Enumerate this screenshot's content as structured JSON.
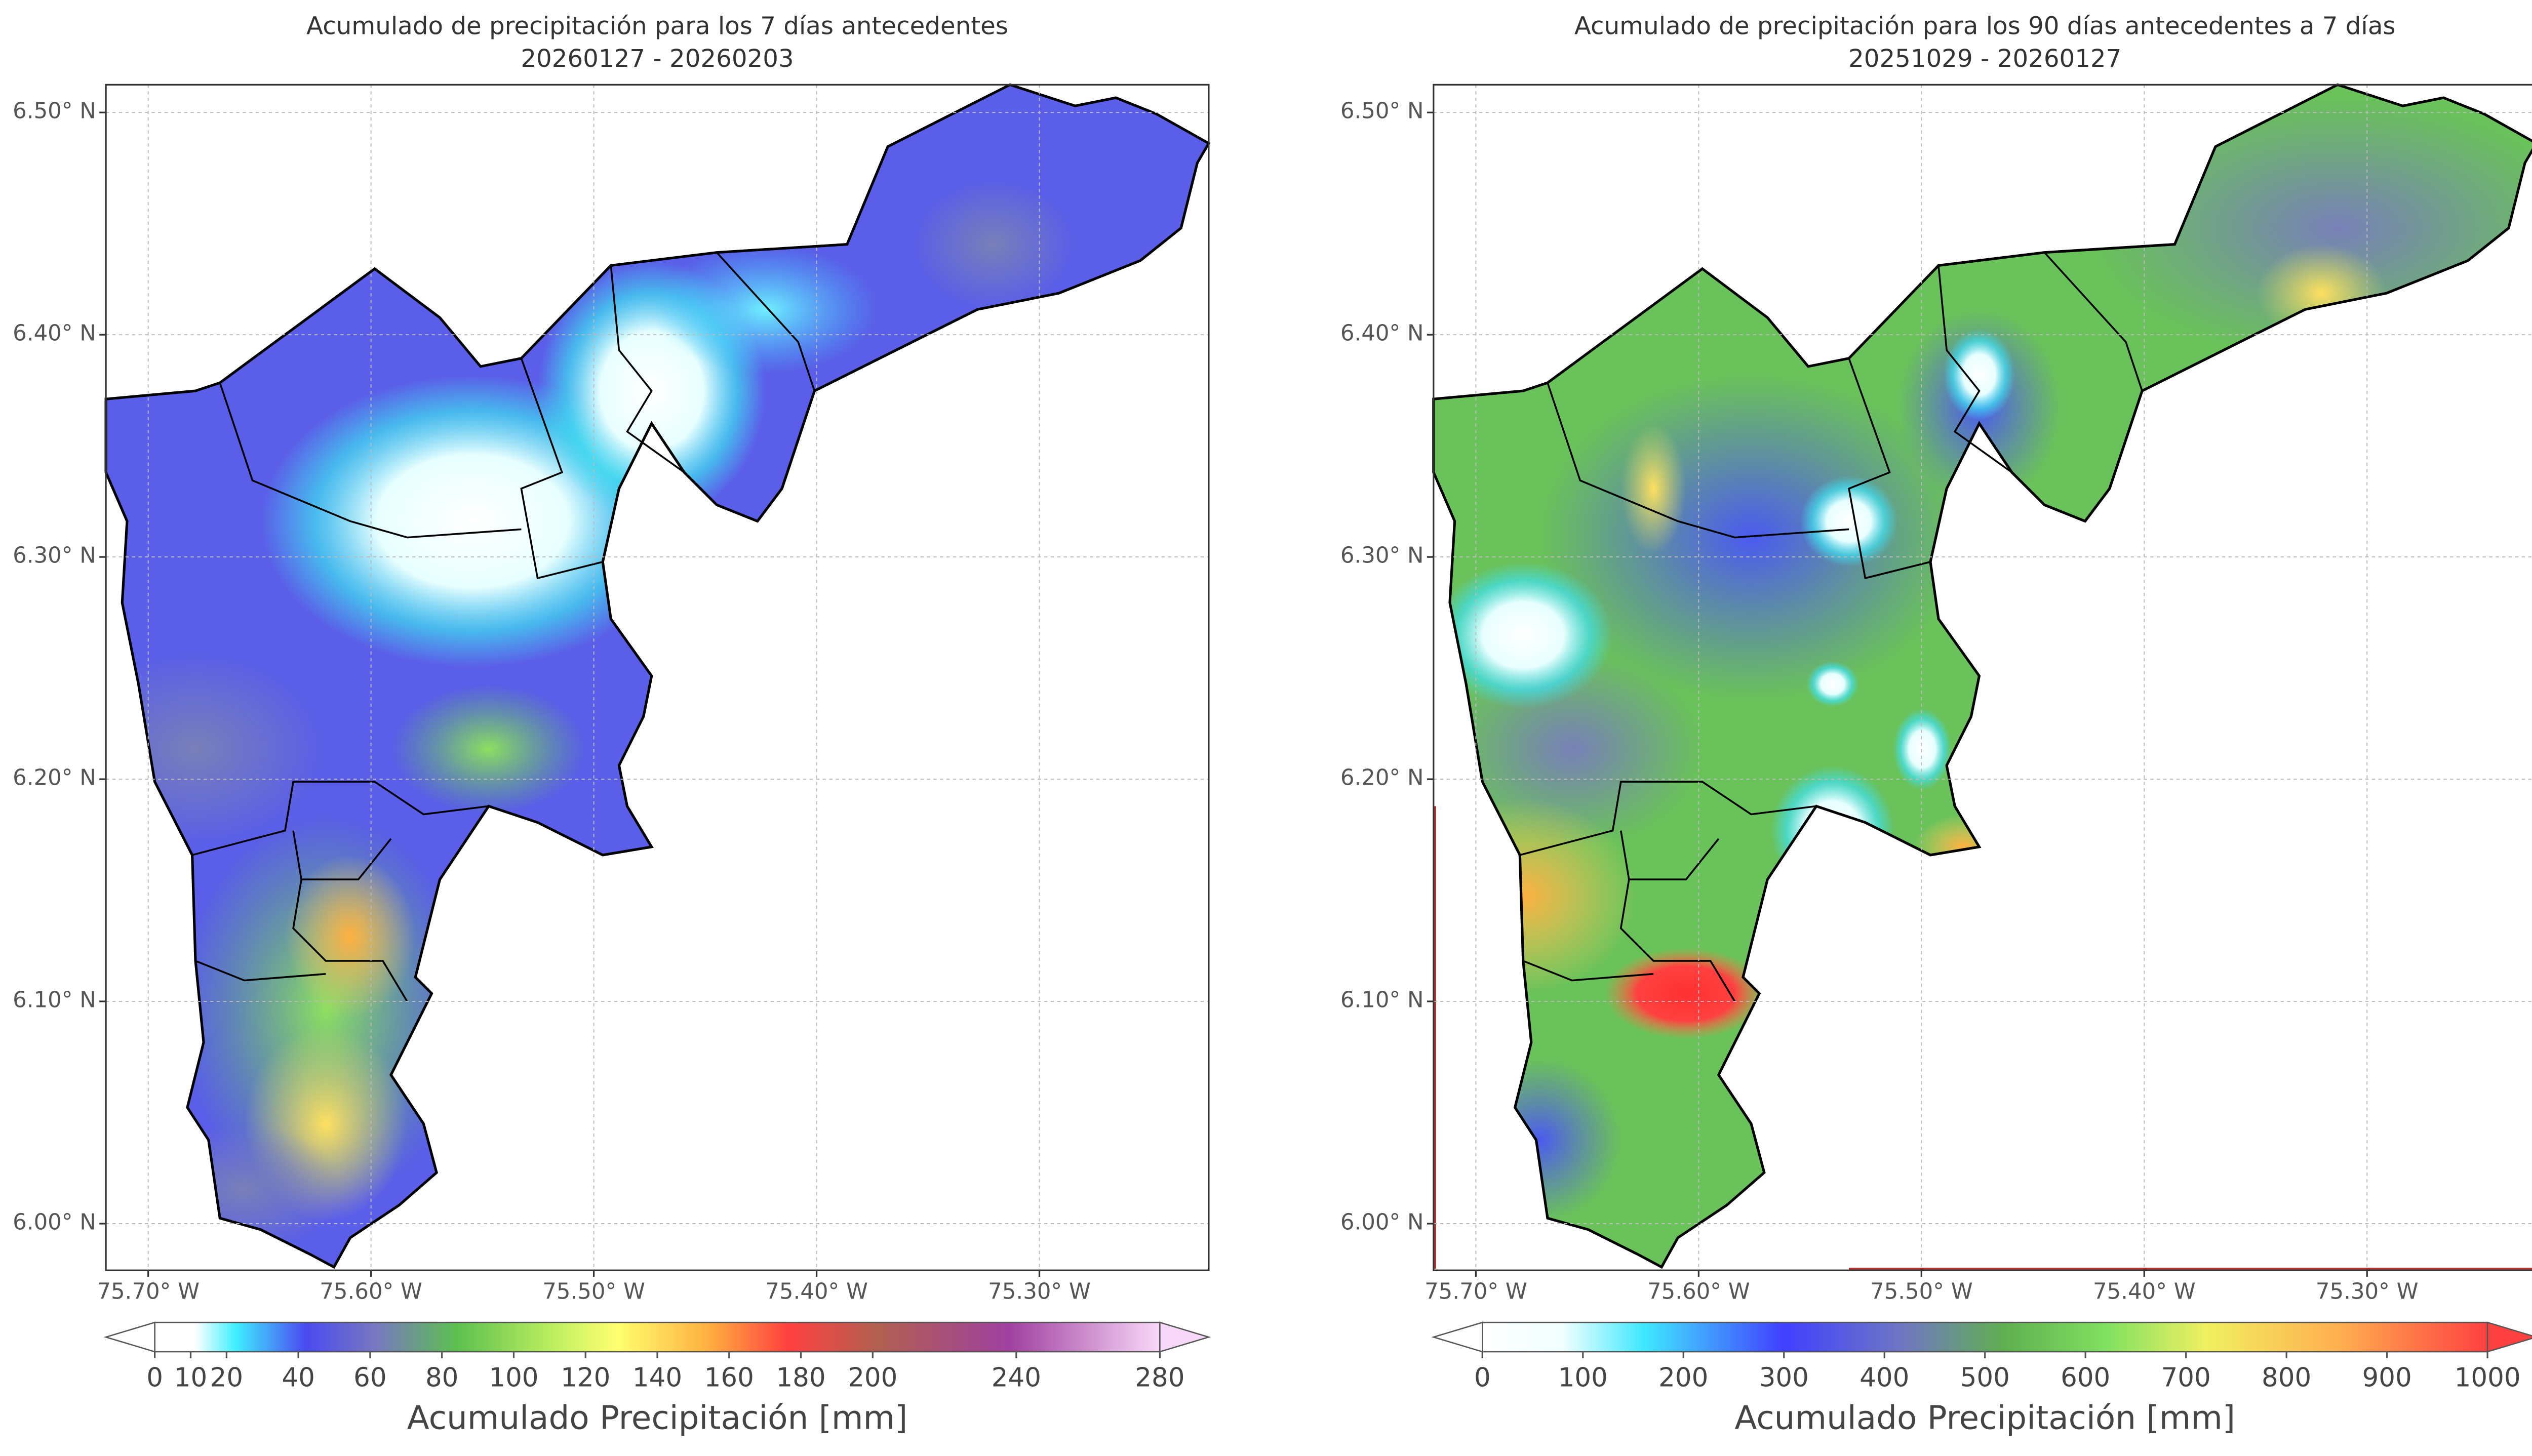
{
  "maps": [
    {
      "title": "Acumulado de precipitación para los 7 días antecedentes",
      "subtitle": "20260127 - 20260203",
      "xlim": [
        -75.719,
        -75.224
      ],
      "ylim": [
        5.979,
        6.5125
      ],
      "xticks": [
        {
          "value": -75.7,
          "label": "75.70° W"
        },
        {
          "value": -75.6,
          "label": "75.60° W"
        },
        {
          "value": -75.5,
          "label": "75.50° W"
        },
        {
          "value": -75.4,
          "label": "75.40° W"
        },
        {
          "value": -75.3,
          "label": "75.30° W"
        }
      ],
      "yticks": [
        {
          "value": 6.5,
          "label": "6.50° N"
        },
        {
          "value": 6.4,
          "label": "6.40° N"
        },
        {
          "value": 6.3,
          "label": "6.30° N"
        },
        {
          "value": 6.2,
          "label": "6.20° N"
        },
        {
          "value": 6.1,
          "label": "6.10° N"
        },
        {
          "value": 6.0,
          "label": "6.00° N"
        }
      ],
      "colorbar": {
        "label": "Acumulado Precipitación [mm]",
        "lim": [
          0,
          280
        ],
        "ticks": [
          0,
          10,
          20,
          40,
          60,
          80,
          100,
          120,
          140,
          160,
          180,
          200,
          240,
          280
        ]
      }
    },
    {
      "title": "Acumulado de precipitación para los 90 días antecedentes a 7 días",
      "subtitle": "20251029 - 20260127",
      "xlim": [
        -75.719,
        -75.224
      ],
      "ylim": [
        5.979,
        6.5125
      ],
      "xticks": [
        {
          "value": -75.7,
          "label": "75.70° W"
        },
        {
          "value": -75.6,
          "label": "75.60° W"
        },
        {
          "value": -75.5,
          "label": "75.50° W"
        },
        {
          "value": -75.4,
          "label": "75.40° W"
        },
        {
          "value": -75.3,
          "label": "75.30° W"
        }
      ],
      "yticks": [
        {
          "value": 6.5,
          "label": "6.50° N"
        },
        {
          "value": 6.4,
          "label": "6.40° N"
        },
        {
          "value": 6.3,
          "label": "6.30° N"
        },
        {
          "value": 6.2,
          "label": "6.20° N"
        },
        {
          "value": 6.1,
          "label": "6.10° N"
        },
        {
          "value": 6.0,
          "label": "6.00° N"
        }
      ],
      "colorbar": {
        "label": "Acumulado Precipitación [mm]",
        "lim": [
          0,
          1000
        ],
        "ticks": [
          0,
          100,
          200,
          300,
          400,
          500,
          600,
          700,
          800,
          900,
          1000
        ]
      }
    }
  ]
}
